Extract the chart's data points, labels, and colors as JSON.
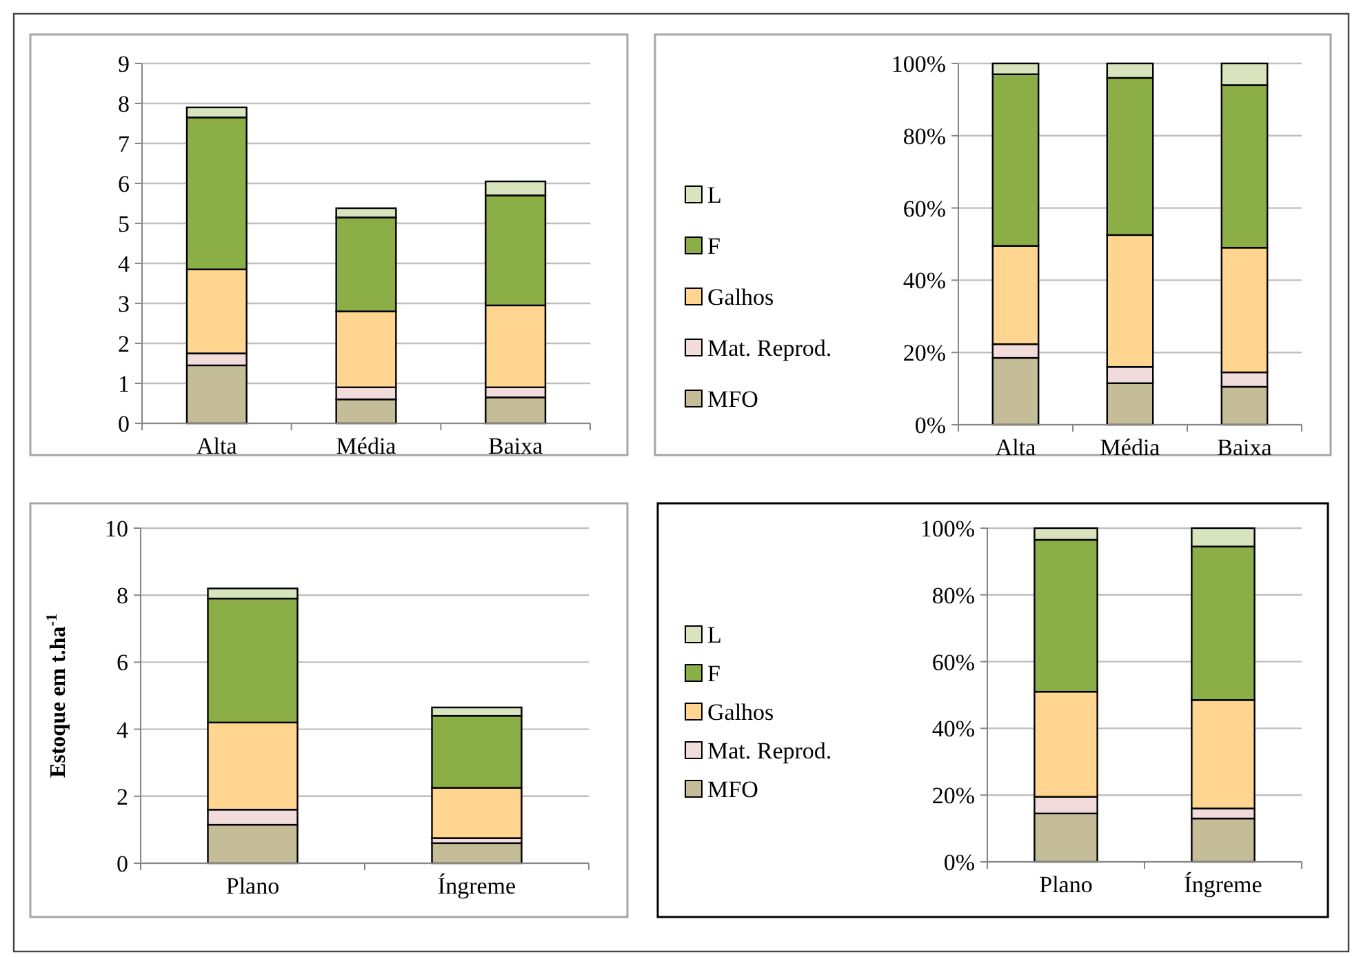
{
  "chart_data": [
    {
      "type": "bar",
      "stacked": true,
      "categories": [
        "Alta",
        "Média",
        "Baixa"
      ],
      "ylim": [
        0,
        9
      ],
      "yticks": [
        0,
        1,
        2,
        3,
        4,
        5,
        6,
        7,
        8,
        9
      ],
      "grid": "y",
      "legend": false,
      "series": [
        {
          "color": "#c4bd97",
          "values": [
            1.45,
            0.6,
            0.65
          ]
        },
        {
          "color": "#f2dcdb",
          "values": [
            0.3,
            0.3,
            0.25
          ]
        },
        {
          "color": "#ffd58f",
          "values": [
            2.1,
            1.9,
            2.05
          ]
        },
        {
          "color": "#8bae46",
          "values": [
            3.8,
            2.35,
            2.75
          ]
        },
        {
          "color": "#d7e4bd",
          "values": [
            0.25,
            0.23,
            0.35
          ]
        }
      ]
    },
    {
      "type": "bar",
      "stacked": true,
      "categories": [
        "Alta",
        "Média",
        "Baixa"
      ],
      "ylim": [
        0,
        100
      ],
      "yticks": [
        {
          "value": 0,
          "label": "0%"
        },
        {
          "value": 20,
          "label": "20%"
        },
        {
          "value": 40,
          "label": "40%"
        },
        {
          "value": 60,
          "label": "60%"
        },
        {
          "value": 80,
          "label": "80%"
        },
        {
          "value": 100,
          "label": "100%"
        }
      ],
      "grid": "y",
      "legend": "left",
      "series": [
        {
          "name": "MFO",
          "color": "#c4bd97",
          "values": [
            18.5,
            11.5,
            10.5
          ]
        },
        {
          "name": "Mat. Reprod.",
          "color": "#f2dcdb",
          "values": [
            3.8,
            4.5,
            4
          ]
        },
        {
          "name": "Galhos",
          "color": "#ffd58f",
          "values": [
            27.2,
            36.5,
            34.5
          ]
        },
        {
          "name": "F",
          "color": "#8bae46",
          "values": [
            47.5,
            43.5,
            45
          ]
        },
        {
          "name": "L",
          "color": "#d7e4bd",
          "values": [
            3,
            4,
            6
          ]
        }
      ]
    },
    {
      "type": "bar",
      "stacked": true,
      "categories": [
        "Plano",
        "Íngreme"
      ],
      "ylabel": "Estoque em t.ha$^{-1}$",
      "ylim": [
        0,
        10
      ],
      "yticks": [
        0,
        2,
        4,
        6,
        8,
        10
      ],
      "grid": "y",
      "legend": false,
      "series": [
        {
          "color": "#c4bd97",
          "values": [
            1.15,
            0.6
          ]
        },
        {
          "color": "#f2dcdb",
          "values": [
            0.45,
            0.15
          ]
        },
        {
          "color": "#ffd58f",
          "values": [
            2.6,
            1.5
          ]
        },
        {
          "color": "#8bae46",
          "values": [
            3.7,
            2.15
          ]
        },
        {
          "color": "#d7e4bd",
          "values": [
            0.3,
            0.25
          ]
        }
      ]
    },
    {
      "type": "bar",
      "stacked": true,
      "categories": [
        "Plano",
        "Íngreme"
      ],
      "ylim": [
        0,
        100
      ],
      "yticks": [
        {
          "value": 0,
          "label": "0%"
        },
        {
          "value": 20,
          "label": "20%"
        },
        {
          "value": 40,
          "label": "40%"
        },
        {
          "value": 60,
          "label": "60%"
        },
        {
          "value": 80,
          "label": "80%"
        },
        {
          "value": 100,
          "label": "100%"
        }
      ],
      "grid": "y",
      "legend": "left",
      "series": [
        {
          "name": "MFO",
          "color": "#c4bd97",
          "values": [
            14.5,
            13
          ]
        },
        {
          "name": "Mat. Reprod.",
          "color": "#f2dcdb",
          "values": [
            5,
            3
          ]
        },
        {
          "name": "Galhos",
          "color": "#ffd58f",
          "values": [
            31.5,
            32.5
          ]
        },
        {
          "name": "F",
          "color": "#8bae46",
          "values": [
            45.5,
            46
          ]
        },
        {
          "name": "L",
          "color": "#d7e4bd",
          "values": [
            3.5,
            5.5
          ]
        }
      ]
    }
  ]
}
